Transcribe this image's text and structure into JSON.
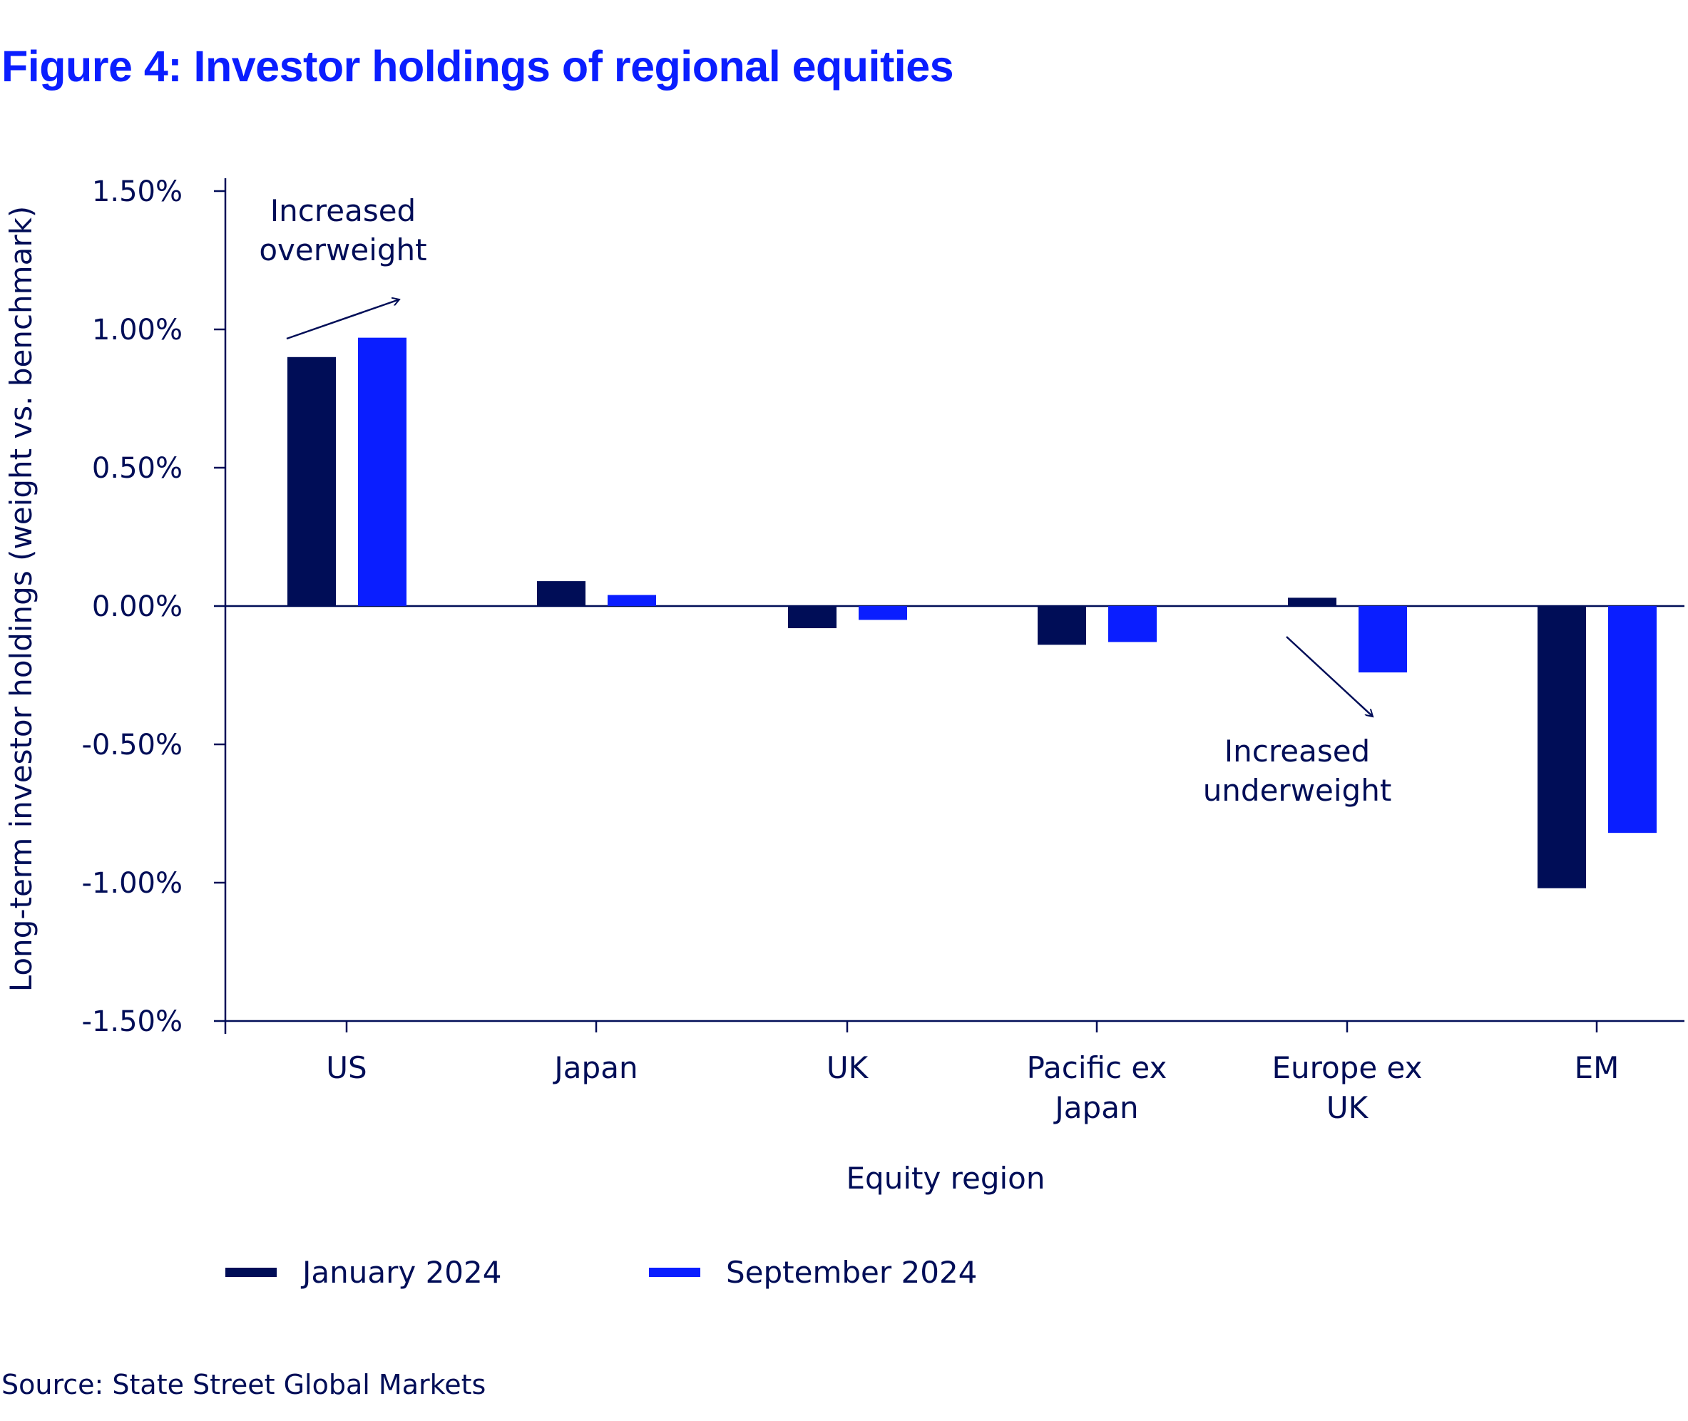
{
  "title": "Figure 4: Investor holdings of regional equities",
  "source": "Source: State Street Global Markets",
  "colors": {
    "title": "#0A1EFF",
    "text": "#000D57",
    "series_jan": "#000D57",
    "series_sep": "#0A1EFF"
  },
  "chart_data": {
    "type": "bar",
    "title": "Figure 4: Investor holdings of regional equities",
    "xlabel": "Equity region",
    "ylabel": "Long-term investor holdings (weight vs. benchmark)",
    "categories": [
      [
        "US"
      ],
      [
        "Japan"
      ],
      [
        "UK"
      ],
      [
        "Pacific ex",
        "Japan"
      ],
      [
        "Europe ex",
        "UK"
      ],
      [
        "EM"
      ]
    ],
    "category_names": [
      "US",
      "Japan",
      "UK",
      "Pacific ex Japan",
      "Europe ex UK",
      "EM"
    ],
    "series": [
      {
        "name": "January 2024",
        "color": "#000D57",
        "values": [
          0.9,
          0.09,
          -0.08,
          -0.14,
          0.03,
          -1.02
        ]
      },
      {
        "name": "September 2024",
        "color": "#0A1EFF",
        "values": [
          0.97,
          0.04,
          -0.05,
          -0.13,
          -0.24,
          -0.82
        ]
      }
    ],
    "ylim": [
      -1.5,
      1.5
    ],
    "yticks": [
      1.5,
      1.0,
      0.5,
      0.0,
      -0.5,
      -1.0,
      -1.5
    ],
    "ytick_labels": [
      "1.50%",
      "1.00%",
      "0.50%",
      "0.00%",
      "-0.50%",
      "-1.00%",
      "-1.50%"
    ],
    "grid": false,
    "legend_position": "bottom-left",
    "annotations": [
      {
        "text": [
          "Increased",
          "overweight"
        ],
        "category": "US",
        "arrow": "up-right"
      },
      {
        "text": [
          "Increased",
          "underweight"
        ],
        "category": "Europe ex UK",
        "arrow": "down-right"
      }
    ]
  }
}
